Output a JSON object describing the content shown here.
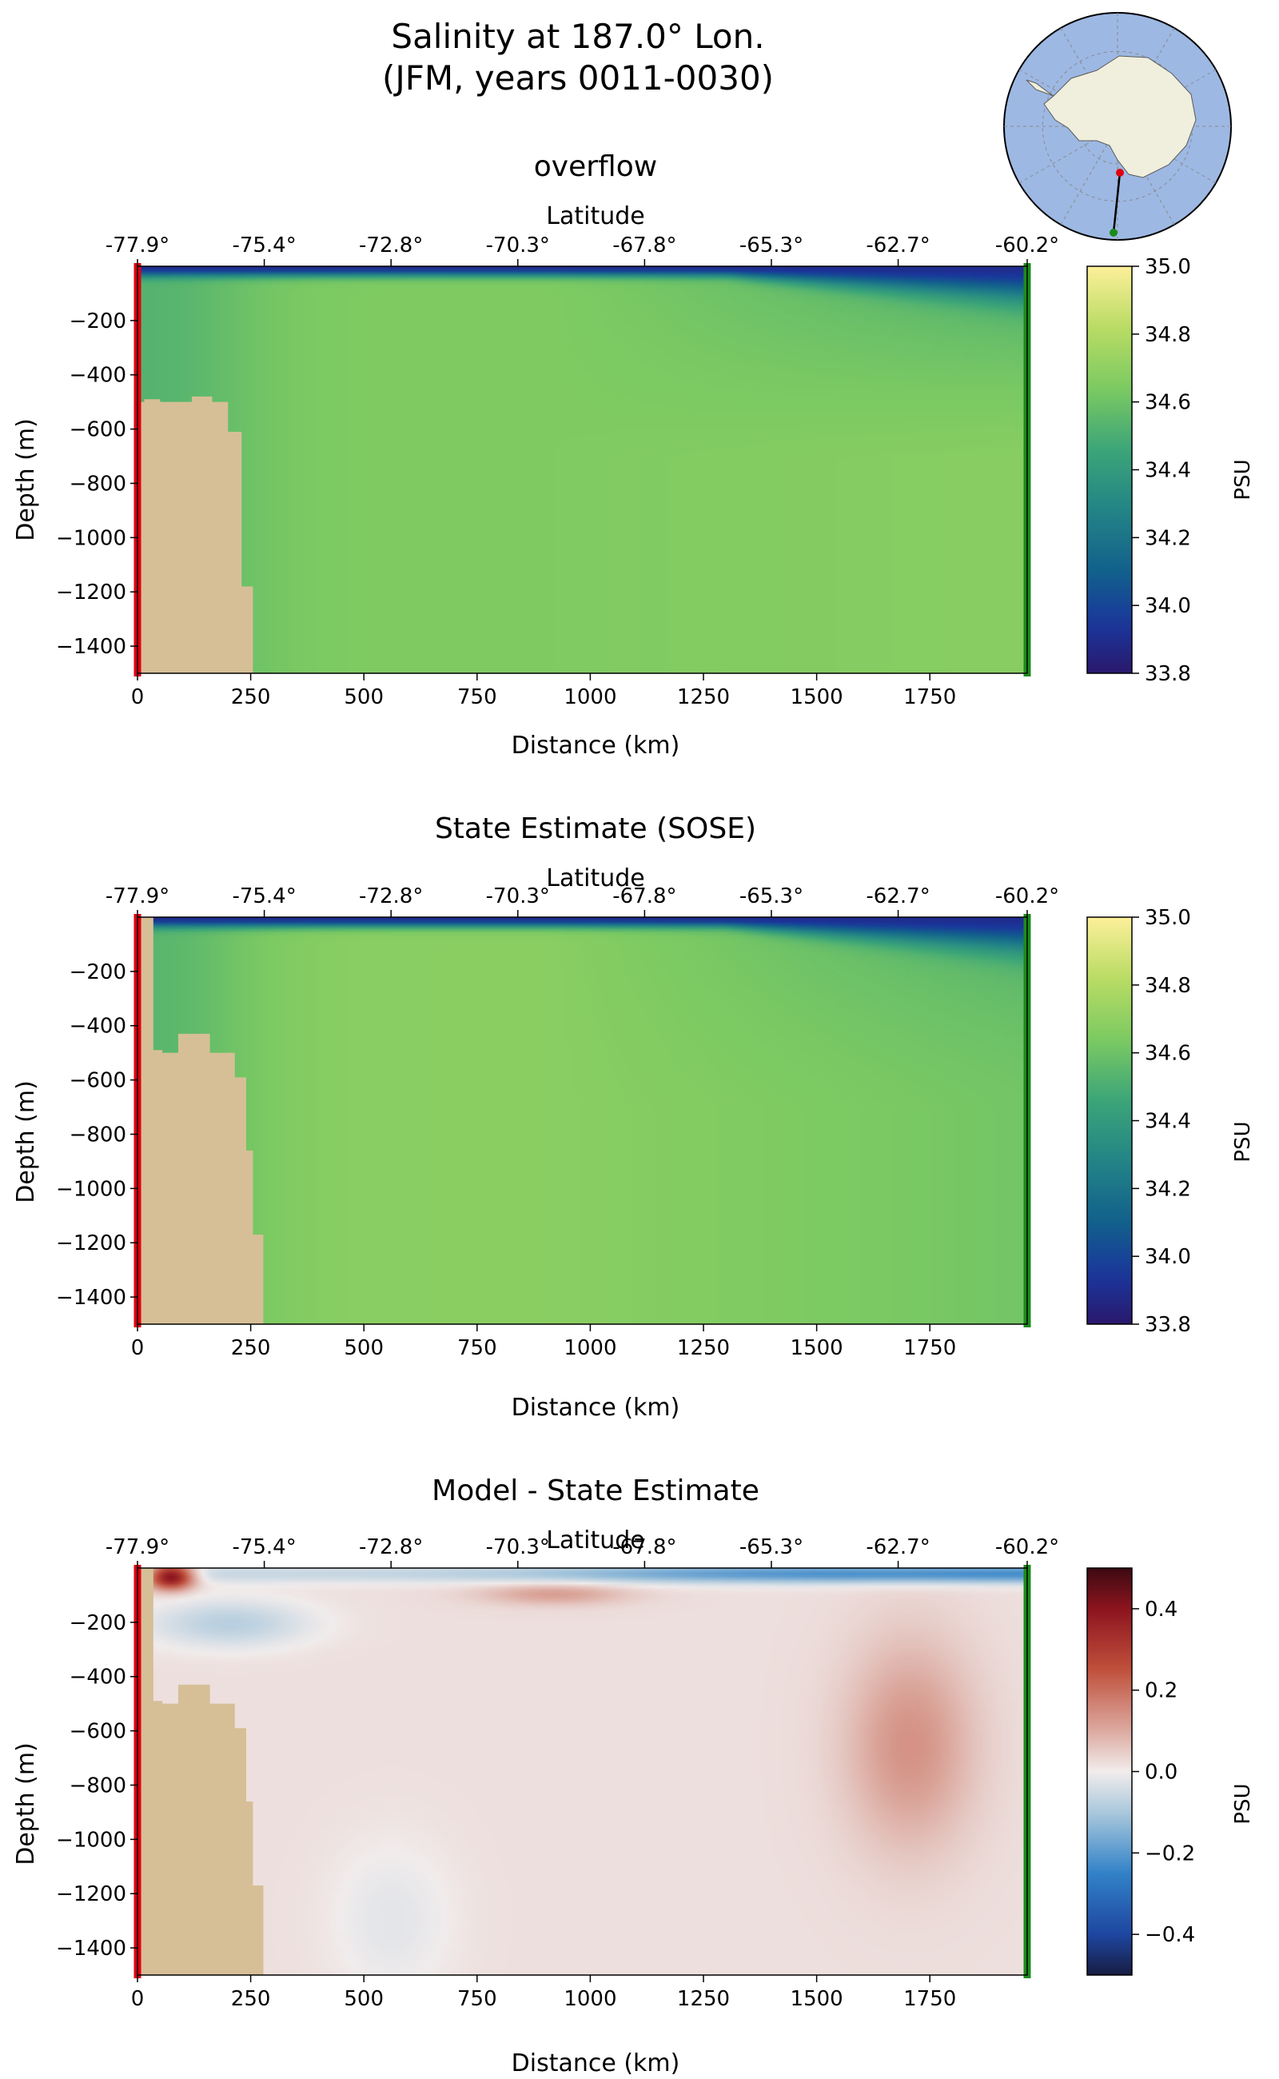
{
  "title_lines": [
    "Salinity at 187.0° Lon.",
    "(JFM, years 0011-0030)"
  ],
  "inset_map": {
    "projection": "south-polar-stereographic",
    "ocean_color": "#9db8e3",
    "land_color": "#f0eedc",
    "transect_start_color": "#e0000f",
    "transect_end_color": "#1a8c1a",
    "transect_line_color": "#000000"
  },
  "chart_data": [
    {
      "type": "heatmap",
      "title": "overflow",
      "xlabel": "Distance (km)",
      "ylabel": "Depth (m)",
      "top_axis_label": "Latitude",
      "xlim": [
        0,
        1965
      ],
      "ylim": [
        -1500,
        0
      ],
      "x_ticks": [
        0,
        250,
        500,
        750,
        1000,
        1250,
        1500,
        1750
      ],
      "y_ticks": [
        -200,
        -400,
        -600,
        -800,
        -1000,
        -1200,
        -1400
      ],
      "top_ticks": [
        "-77.9°",
        "-75.4°",
        "-72.8°",
        "-70.3°",
        "-67.8°",
        "-65.3°",
        "-62.7°",
        "-60.2°"
      ],
      "top_tick_distances_km": [
        0,
        280,
        560,
        840,
        1120,
        1400,
        1680,
        1965
      ],
      "colorbar": {
        "label": "PSU",
        "vmin": 33.8,
        "vmax": 35.0,
        "ticks": [
          33.8,
          34.0,
          34.2,
          34.4,
          34.6,
          34.8,
          35.0
        ],
        "colormap": "haline"
      },
      "bathymetry_km_depth": [
        [
          0,
          -1500
        ],
        [
          0,
          -500
        ],
        [
          15,
          -500
        ],
        [
          15,
          -490
        ],
        [
          50,
          -490
        ],
        [
          50,
          -500
        ],
        [
          120,
          -500
        ],
        [
          120,
          -480
        ],
        [
          165,
          -480
        ],
        [
          165,
          -500
        ],
        [
          200,
          -500
        ],
        [
          200,
          -610
        ],
        [
          230,
          -610
        ],
        [
          230,
          -1180
        ],
        [
          255,
          -1180
        ],
        [
          255,
          -1500
        ]
      ],
      "start_marker_color": "#e0000f",
      "end_marker_color": "#1a8c1a",
      "field": {
        "surface_layer": 33.9,
        "interior": 34.65,
        "near_shelf": 34.45,
        "north_upper": 34.4,
        "north_bottom": 34.7
      }
    },
    {
      "type": "heatmap",
      "title": "State Estimate (SOSE)",
      "xlabel": "Distance (km)",
      "ylabel": "Depth (m)",
      "top_axis_label": "Latitude",
      "xlim": [
        0,
        1965
      ],
      "ylim": [
        -1500,
        0
      ],
      "x_ticks": [
        0,
        250,
        500,
        750,
        1000,
        1250,
        1500,
        1750
      ],
      "y_ticks": [
        -200,
        -400,
        -600,
        -800,
        -1000,
        -1200,
        -1400
      ],
      "top_ticks": [
        "-77.9°",
        "-75.4°",
        "-72.8°",
        "-70.3°",
        "-67.8°",
        "-65.3°",
        "-62.7°",
        "-60.2°"
      ],
      "top_tick_distances_km": [
        0,
        280,
        560,
        840,
        1120,
        1400,
        1680,
        1965
      ],
      "colorbar": {
        "label": "PSU",
        "vmin": 33.8,
        "vmax": 35.0,
        "ticks": [
          33.8,
          34.0,
          34.2,
          34.4,
          34.6,
          34.8,
          35.0
        ],
        "colormap": "haline"
      },
      "bathymetry_km_depth": [
        [
          0,
          -1500
        ],
        [
          0,
          0
        ],
        [
          35,
          0
        ],
        [
          35,
          -490
        ],
        [
          55,
          -490
        ],
        [
          55,
          -500
        ],
        [
          90,
          -500
        ],
        [
          90,
          -430
        ],
        [
          160,
          -430
        ],
        [
          160,
          -500
        ],
        [
          215,
          -500
        ],
        [
          215,
          -590
        ],
        [
          240,
          -590
        ],
        [
          240,
          -860
        ],
        [
          255,
          -860
        ],
        [
          255,
          -1170
        ],
        [
          278,
          -1170
        ],
        [
          278,
          -1500
        ]
      ],
      "start_marker_color": "#e0000f",
      "end_marker_color": "#1a8c1a",
      "field": {
        "surface_layer": 33.9,
        "interior": 34.68,
        "near_shelf": 34.45,
        "north_upper": 34.4,
        "north_bottom": 34.55
      }
    },
    {
      "type": "heatmap",
      "title": "Model - State Estimate",
      "xlabel": "Distance (km)",
      "ylabel": "Depth (m)",
      "top_axis_label": "Latitude",
      "xlim": [
        0,
        1965
      ],
      "ylim": [
        -1500,
        0
      ],
      "x_ticks": [
        0,
        250,
        500,
        750,
        1000,
        1250,
        1500,
        1750
      ],
      "y_ticks": [
        -200,
        -400,
        -600,
        -800,
        -1000,
        -1200,
        -1400
      ],
      "top_ticks": [
        "-77.9°",
        "-75.4°",
        "-72.8°",
        "-70.3°",
        "-67.8°",
        "-65.3°",
        "-62.7°",
        "-60.2°"
      ],
      "top_tick_distances_km": [
        0,
        280,
        560,
        840,
        1120,
        1400,
        1680,
        1965
      ],
      "colorbar": {
        "label": "PSU",
        "vmin": -0.5,
        "vmax": 0.5,
        "ticks": [
          -0.4,
          -0.2,
          0.0,
          0.2,
          0.4
        ],
        "colormap": "balance"
      },
      "bathymetry_km_depth": [
        [
          0,
          -1500
        ],
        [
          0,
          0
        ],
        [
          35,
          0
        ],
        [
          35,
          -490
        ],
        [
          55,
          -490
        ],
        [
          55,
          -500
        ],
        [
          90,
          -500
        ],
        [
          90,
          -430
        ],
        [
          160,
          -430
        ],
        [
          160,
          -500
        ],
        [
          215,
          -500
        ],
        [
          215,
          -590
        ],
        [
          240,
          -590
        ],
        [
          240,
          -860
        ],
        [
          255,
          -860
        ],
        [
          255,
          -1170
        ],
        [
          278,
          -1170
        ],
        [
          278,
          -1500
        ]
      ],
      "start_marker_color": "#e0000f",
      "end_marker_color": "#1a8c1a",
      "features": {
        "near_shore_surface_max": 0.45,
        "surface_band": -0.25,
        "mid_surface_positive": 0.1,
        "north_positive_blob": 0.12,
        "subsurface_negative": -0.1
      }
    }
  ]
}
